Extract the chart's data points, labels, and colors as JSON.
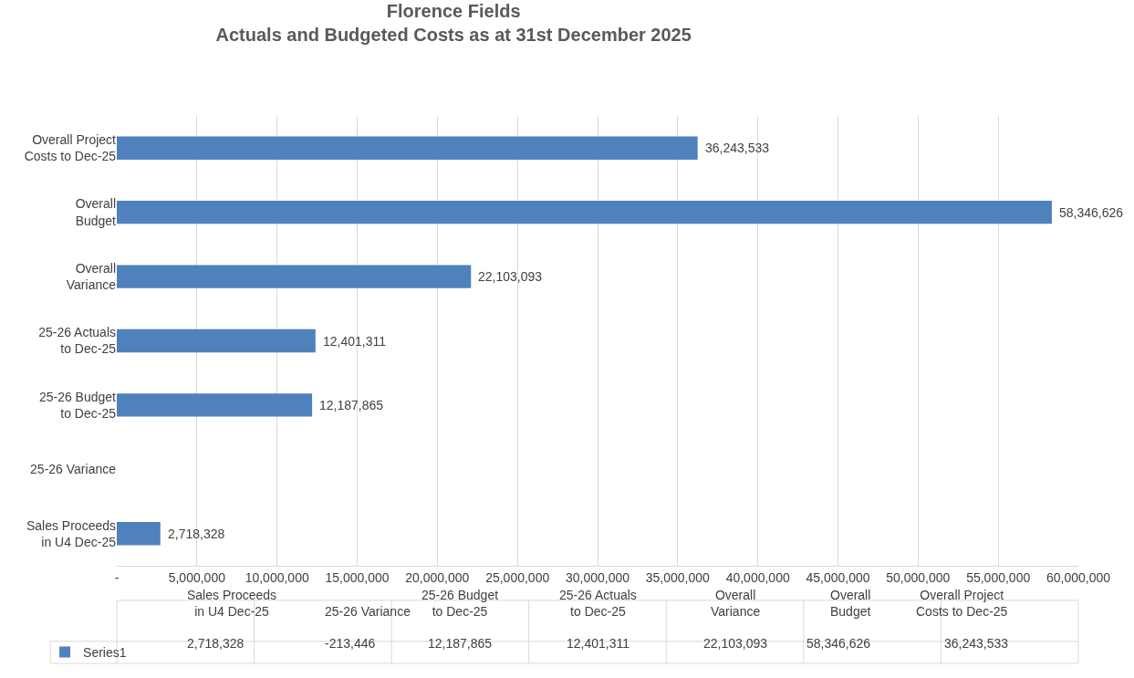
{
  "chart_data": {
    "type": "bar",
    "orientation": "horizontal",
    "title": "Florence Fields",
    "subtitle": "Actuals and Budgeted Costs as at 31st December 2025",
    "categories": [
      "Overall Project\nCosts to Dec-25",
      "Overall\nBudget",
      "Overall\nVariance",
      "25-26 Actuals\nto Dec-25",
      "25-26 Budget\nto Dec-25",
      "25-26 Variance",
      "Sales Proceeds\nin U4 Dec-25"
    ],
    "series": [
      {
        "name": "Series1",
        "color": "#4f81bd",
        "values": [
          36243533,
          58346626,
          22103093,
          12401311,
          12187865,
          null,
          2718328
        ],
        "value_labels": [
          "36,243,533",
          "58,346,626",
          "22,103,093",
          "12,401,311",
          "12,187,865",
          "-213,446",
          "2,718,328"
        ]
      }
    ],
    "xlim": [
      0,
      60000000
    ],
    "xticks": [
      {
        "value": 0,
        "label": "-"
      },
      {
        "value": 5000000,
        "label": "5,000,000"
      },
      {
        "value": 10000000,
        "label": "10,000,000"
      },
      {
        "value": 15000000,
        "label": "15,000,000"
      },
      {
        "value": 20000000,
        "label": "20,000,000"
      },
      {
        "value": 25000000,
        "label": "25,000,000"
      },
      {
        "value": 30000000,
        "label": "30,000,000"
      },
      {
        "value": 35000000,
        "label": "35,000,000"
      },
      {
        "value": 40000000,
        "label": "40,000,000"
      },
      {
        "value": 45000000,
        "label": "45,000,000"
      },
      {
        "value": 50000000,
        "label": "50,000,000"
      },
      {
        "value": 55000000,
        "label": "55,000,000"
      },
      {
        "value": 60000000,
        "label": "60,000,000"
      }
    ],
    "grid": "x",
    "legend": "bottom left"
  }
}
